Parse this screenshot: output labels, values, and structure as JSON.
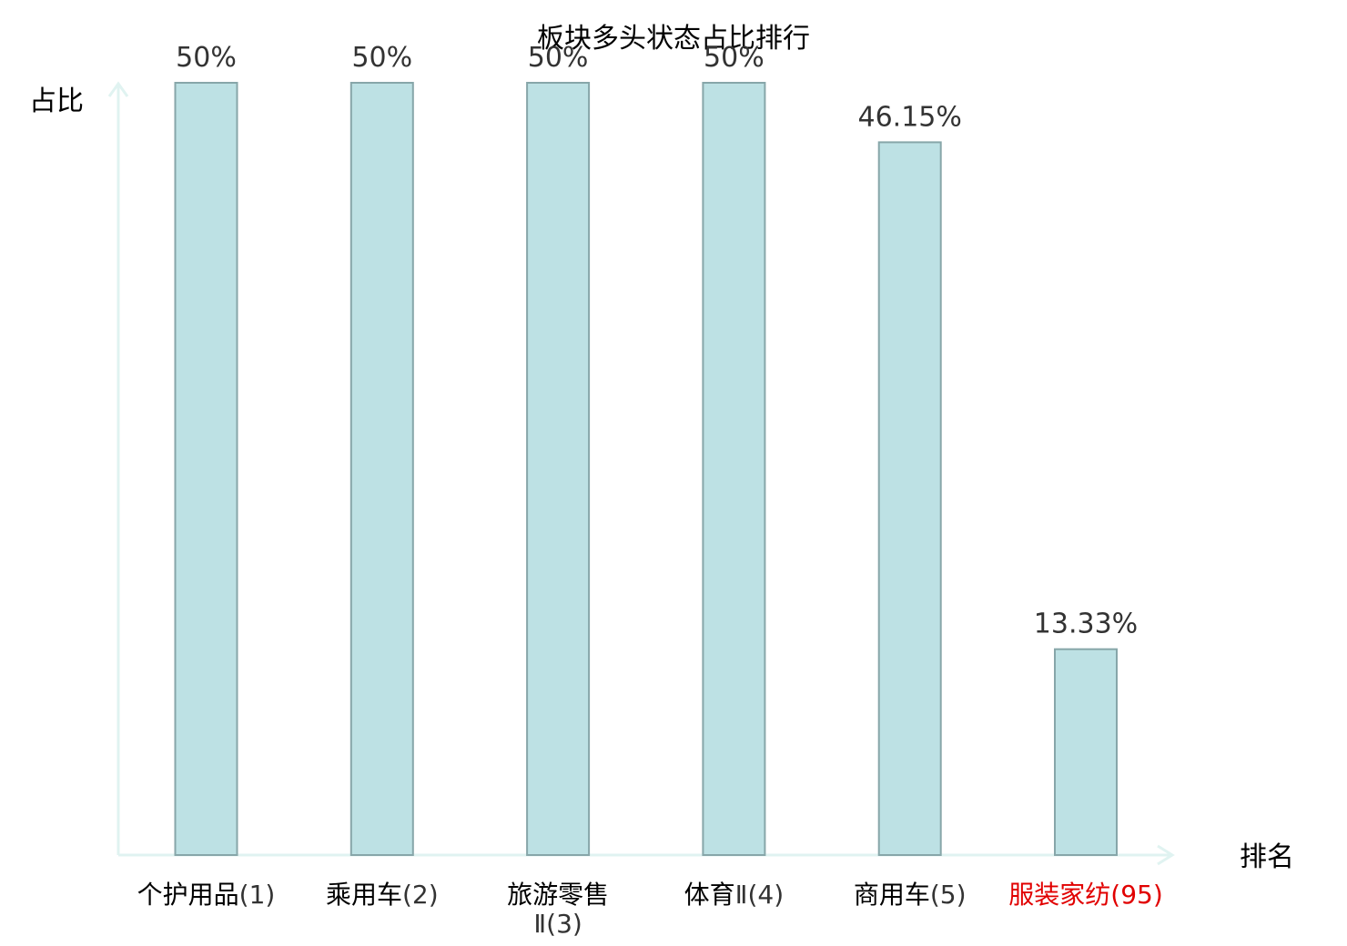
{
  "chart_data": {
    "type": "bar",
    "title": "板块多头状态占比排行",
    "xlabel": "排名",
    "ylabel": "占比",
    "ylim": [
      0,
      50
    ],
    "grid": false,
    "legend": "none",
    "categories": [
      {
        "name": "个护用品",
        "rank": "(1)",
        "highlight": false
      },
      {
        "name": "乘用车",
        "rank": "(2)",
        "highlight": false
      },
      {
        "name": "旅游零售",
        "rank": "Ⅱ(3)",
        "highlight": false
      },
      {
        "name": "体育",
        "rank": "Ⅱ(4)",
        "highlight": false
      },
      {
        "name": "商用车",
        "rank": "(5)",
        "highlight": false
      },
      {
        "name": "服装家纺",
        "rank": "(95)",
        "highlight": true
      }
    ],
    "values": [
      50,
      50,
      50,
      50,
      46.15,
      13.33
    ],
    "value_labels": [
      "50%",
      "50%",
      "50%",
      "50%",
      "46.15%",
      "13.33%"
    ],
    "colors": {
      "bar_fill": "#bde1e4",
      "bar_stroke": "#87a6a9",
      "axis": "#e0f3f1",
      "highlight_label": "#e10000",
      "value_label": "#333333"
    }
  }
}
